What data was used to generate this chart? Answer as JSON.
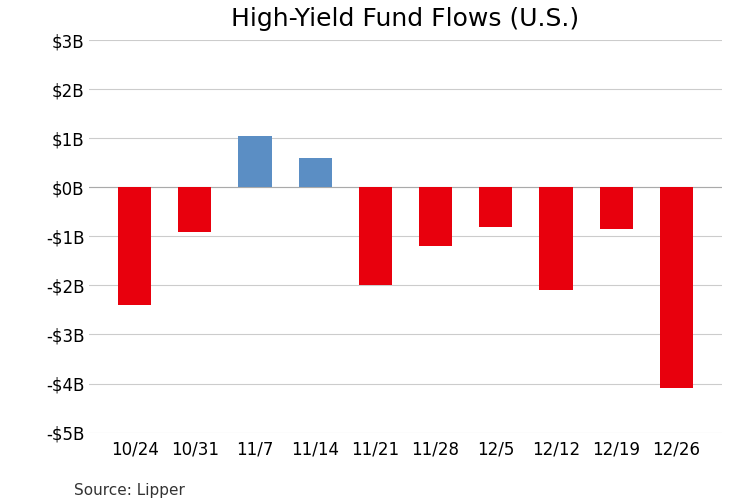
{
  "title": "High-Yield Fund Flows (U.S.)",
  "categories": [
    "10/24",
    "10/31",
    "11/7",
    "11/14",
    "11/21",
    "11/28",
    "12/5",
    "12/12",
    "12/19",
    "12/26"
  ],
  "values": [
    -2.4,
    -0.9,
    1.05,
    0.6,
    -2.0,
    -1.2,
    -0.8,
    -2.1,
    -0.85,
    -4.1
  ],
  "colors": [
    "#e8000d",
    "#e8000d",
    "#5b8ec4",
    "#5b8ec4",
    "#e8000d",
    "#e8000d",
    "#e8000d",
    "#e8000d",
    "#e8000d",
    "#e8000d"
  ],
  "ylim": [
    -5,
    3
  ],
  "yticks": [
    -5,
    -4,
    -3,
    -2,
    -1,
    0,
    1,
    2,
    3
  ],
  "ytick_labels": [
    "-$5B",
    "-$4B",
    "-$3B",
    "-$2B",
    "-$1B",
    "$0B",
    "$1B",
    "$2B",
    "$3B"
  ],
  "source_text": "Source: Lipper",
  "background_color": "#ffffff",
  "grid_color": "#cccccc",
  "title_fontsize": 18,
  "tick_fontsize": 12,
  "source_fontsize": 11,
  "bar_width": 0.55
}
